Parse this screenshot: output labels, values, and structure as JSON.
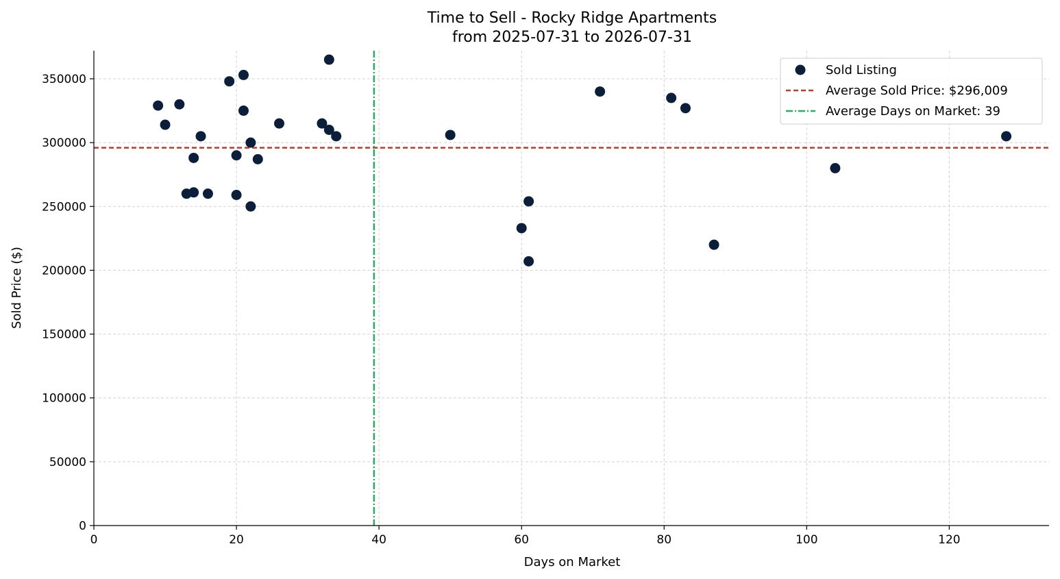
{
  "chart_data": {
    "type": "scatter",
    "title": "Time to Sell - Rocky Ridge Apartments",
    "subtitle": "from 2025-07-31 to 2026-07-31",
    "xlabel": "Days on Market",
    "ylabel": "Sold Price ($)",
    "xlim": [
      0,
      134
    ],
    "ylim": [
      0,
      372000
    ],
    "x_ticks": [
      0,
      20,
      40,
      60,
      80,
      100,
      120
    ],
    "y_ticks": [
      0,
      50000,
      100000,
      150000,
      200000,
      250000,
      300000,
      350000
    ],
    "grid": true,
    "legend_position": "top-right",
    "series": [
      {
        "name": "Sold Listing",
        "color": "#0b1f3a",
        "points": [
          {
            "x": 9,
            "y": 329000
          },
          {
            "x": 10,
            "y": 314000
          },
          {
            "x": 12,
            "y": 330000
          },
          {
            "x": 13,
            "y": 260000
          },
          {
            "x": 14,
            "y": 261000
          },
          {
            "x": 14,
            "y": 288000
          },
          {
            "x": 15,
            "y": 305000
          },
          {
            "x": 16,
            "y": 260000
          },
          {
            "x": 19,
            "y": 348000
          },
          {
            "x": 20,
            "y": 290000
          },
          {
            "x": 20,
            "y": 259000
          },
          {
            "x": 21,
            "y": 353000
          },
          {
            "x": 21,
            "y": 325000
          },
          {
            "x": 22,
            "y": 300000
          },
          {
            "x": 22,
            "y": 250000
          },
          {
            "x": 23,
            "y": 287000
          },
          {
            "x": 26,
            "y": 315000
          },
          {
            "x": 32,
            "y": 315000
          },
          {
            "x": 33,
            "y": 310000
          },
          {
            "x": 33,
            "y": 365000
          },
          {
            "x": 34,
            "y": 305000
          },
          {
            "x": 50,
            "y": 306000
          },
          {
            "x": 60,
            "y": 233000
          },
          {
            "x": 61,
            "y": 254000
          },
          {
            "x": 61,
            "y": 207000
          },
          {
            "x": 71,
            "y": 340000
          },
          {
            "x": 81,
            "y": 335000
          },
          {
            "x": 83,
            "y": 327000
          },
          {
            "x": 87,
            "y": 220000
          },
          {
            "x": 104,
            "y": 280000
          },
          {
            "x": 128,
            "y": 305000
          }
        ]
      }
    ],
    "reference_lines": {
      "avg_price": {
        "name": "Average Sold Price: $296,009",
        "value": 296009,
        "orientation": "horizontal",
        "color": "#c0392b",
        "style": "dashed"
      },
      "avg_days": {
        "name": "Average Days on Market: 39",
        "value": 39.3,
        "orientation": "vertical",
        "color": "#27ae60",
        "style": "dashdot"
      }
    }
  }
}
